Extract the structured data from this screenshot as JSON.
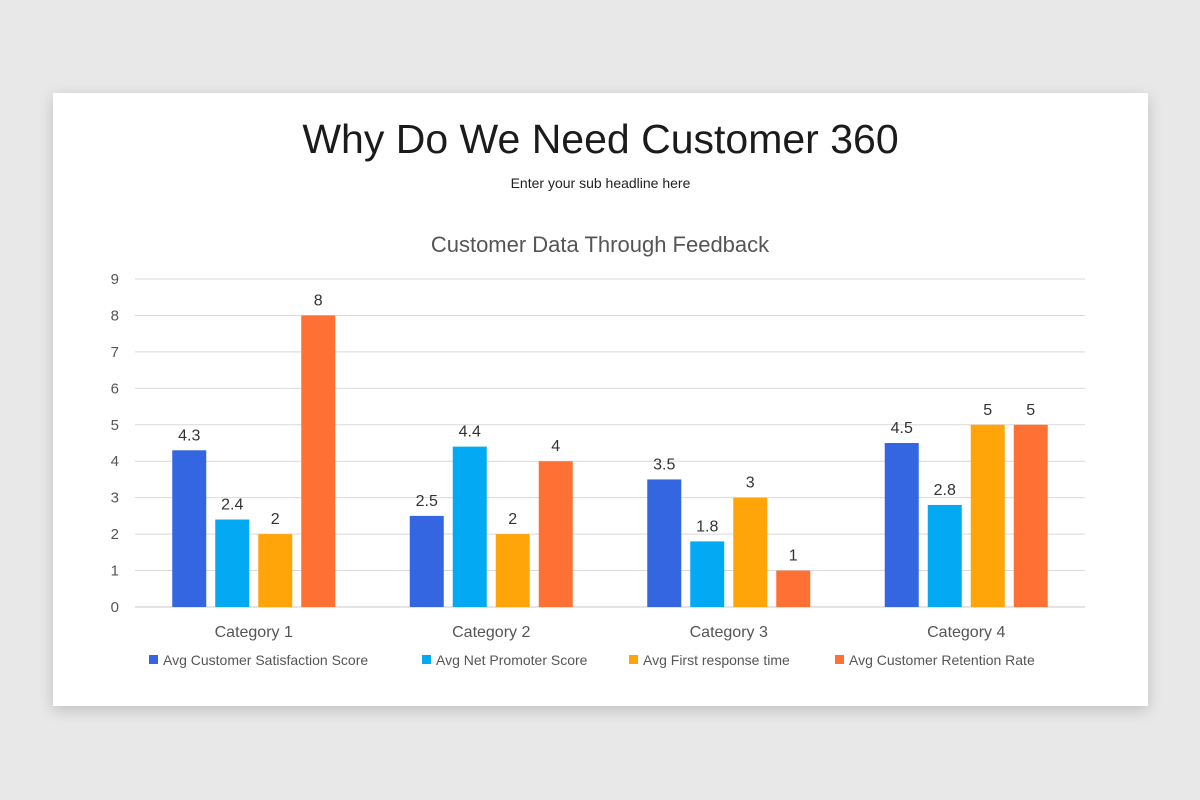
{
  "slide": {
    "title": "Why Do We Need Customer 360",
    "subtitle": "Enter your sub headline here"
  },
  "chart_data": {
    "type": "bar",
    "title": "Customer Data Through Feedback",
    "xlabel": "",
    "ylabel": "",
    "categories": [
      "Category 1",
      "Category 2",
      "Category 3",
      "Category 4"
    ],
    "series": [
      {
        "name": "Avg Customer Satisfaction Score",
        "color": "#3366e0",
        "values": [
          4.3,
          2.5,
          3.5,
          4.5
        ]
      },
      {
        "name": "Avg Net Promoter Score",
        "color": "#04a9f4",
        "values": [
          2.4,
          4.4,
          1.8,
          2.8
        ]
      },
      {
        "name": "Avg First response time",
        "color": "#ffa50a",
        "values": [
          2,
          2,
          3,
          5
        ]
      },
      {
        "name": "Avg Customer Retention Rate",
        "color": "#ff7034",
        "values": [
          8,
          4,
          1,
          5
        ]
      }
    ],
    "ylim": [
      0,
      9
    ],
    "yticks": [
      0,
      1,
      2,
      3,
      4,
      5,
      6,
      7,
      8,
      9
    ],
    "grid": true,
    "legend": "bottom",
    "data_labels": true
  }
}
